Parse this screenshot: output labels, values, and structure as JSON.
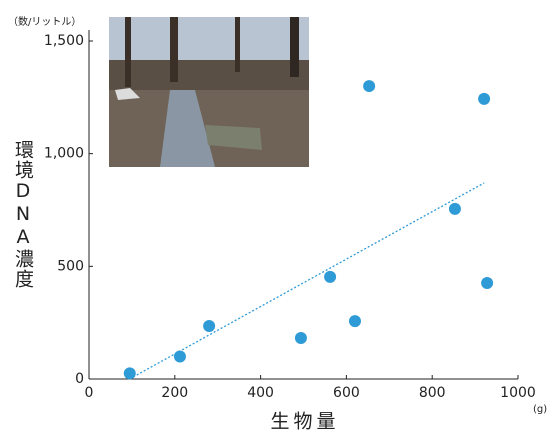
{
  "chart_data": {
    "type": "scatter",
    "x_label": "生物量",
    "y_label": "環境DNA濃度",
    "y_unit": "（数/リットル）",
    "x_unit": "(g)",
    "color": "#2e9ad6",
    "x": [
      95,
      212,
      280,
      494,
      562,
      620,
      653,
      853,
      921,
      928
    ],
    "values": [
      25,
      100,
      235,
      182,
      453,
      257,
      1300,
      755,
      1243,
      426
    ],
    "trendline": {
      "x": [
        103,
        921
      ],
      "y": [
        9,
        870
      ],
      "color": "#2e9ad6"
    },
    "xlim": [
      0,
      1000
    ],
    "xticks": [
      0,
      200,
      400,
      600,
      800,
      1000
    ],
    "ylim": [
      0,
      1500
    ],
    "yticks": [
      0,
      {
        "value": 500,
        "label": "500"
      },
      {
        "value": 1000,
        "label": "1,000"
      },
      {
        "value": 1500,
        "label": "1,500"
      }
    ]
  }
}
